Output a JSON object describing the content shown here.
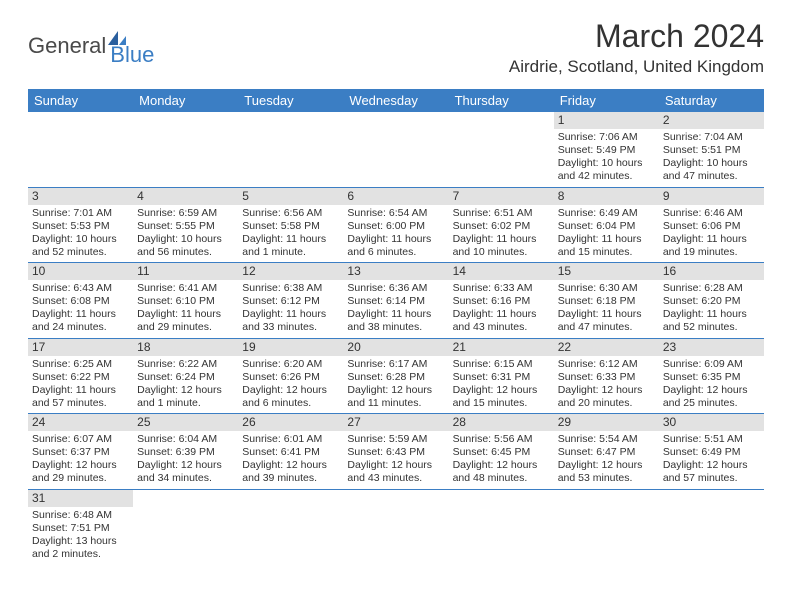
{
  "logo": {
    "part1": "General",
    "part2": "Blue"
  },
  "title": "March 2024",
  "location": "Airdrie, Scotland, United Kingdom",
  "day_headers": [
    "Sunday",
    "Monday",
    "Tuesday",
    "Wednesday",
    "Thursday",
    "Friday",
    "Saturday"
  ],
  "header_bg": "#3b7ec4",
  "daynum_bg": "#e2e2e2",
  "border_color": "#3b7ec4",
  "weeks": [
    [
      {
        "empty": true
      },
      {
        "empty": true
      },
      {
        "empty": true
      },
      {
        "empty": true
      },
      {
        "empty": true
      },
      {
        "day": "1",
        "sunrise": "Sunrise: 7:06 AM",
        "sunset": "Sunset: 5:49 PM",
        "daylight": "Daylight: 10 hours and 42 minutes."
      },
      {
        "day": "2",
        "sunrise": "Sunrise: 7:04 AM",
        "sunset": "Sunset: 5:51 PM",
        "daylight": "Daylight: 10 hours and 47 minutes."
      }
    ],
    [
      {
        "day": "3",
        "sunrise": "Sunrise: 7:01 AM",
        "sunset": "Sunset: 5:53 PM",
        "daylight": "Daylight: 10 hours and 52 minutes."
      },
      {
        "day": "4",
        "sunrise": "Sunrise: 6:59 AM",
        "sunset": "Sunset: 5:55 PM",
        "daylight": "Daylight: 10 hours and 56 minutes."
      },
      {
        "day": "5",
        "sunrise": "Sunrise: 6:56 AM",
        "sunset": "Sunset: 5:58 PM",
        "daylight": "Daylight: 11 hours and 1 minute."
      },
      {
        "day": "6",
        "sunrise": "Sunrise: 6:54 AM",
        "sunset": "Sunset: 6:00 PM",
        "daylight": "Daylight: 11 hours and 6 minutes."
      },
      {
        "day": "7",
        "sunrise": "Sunrise: 6:51 AM",
        "sunset": "Sunset: 6:02 PM",
        "daylight": "Daylight: 11 hours and 10 minutes."
      },
      {
        "day": "8",
        "sunrise": "Sunrise: 6:49 AM",
        "sunset": "Sunset: 6:04 PM",
        "daylight": "Daylight: 11 hours and 15 minutes."
      },
      {
        "day": "9",
        "sunrise": "Sunrise: 6:46 AM",
        "sunset": "Sunset: 6:06 PM",
        "daylight": "Daylight: 11 hours and 19 minutes."
      }
    ],
    [
      {
        "day": "10",
        "sunrise": "Sunrise: 6:43 AM",
        "sunset": "Sunset: 6:08 PM",
        "daylight": "Daylight: 11 hours and 24 minutes."
      },
      {
        "day": "11",
        "sunrise": "Sunrise: 6:41 AM",
        "sunset": "Sunset: 6:10 PM",
        "daylight": "Daylight: 11 hours and 29 minutes."
      },
      {
        "day": "12",
        "sunrise": "Sunrise: 6:38 AM",
        "sunset": "Sunset: 6:12 PM",
        "daylight": "Daylight: 11 hours and 33 minutes."
      },
      {
        "day": "13",
        "sunrise": "Sunrise: 6:36 AM",
        "sunset": "Sunset: 6:14 PM",
        "daylight": "Daylight: 11 hours and 38 minutes."
      },
      {
        "day": "14",
        "sunrise": "Sunrise: 6:33 AM",
        "sunset": "Sunset: 6:16 PM",
        "daylight": "Daylight: 11 hours and 43 minutes."
      },
      {
        "day": "15",
        "sunrise": "Sunrise: 6:30 AM",
        "sunset": "Sunset: 6:18 PM",
        "daylight": "Daylight: 11 hours and 47 minutes."
      },
      {
        "day": "16",
        "sunrise": "Sunrise: 6:28 AM",
        "sunset": "Sunset: 6:20 PM",
        "daylight": "Daylight: 11 hours and 52 minutes."
      }
    ],
    [
      {
        "day": "17",
        "sunrise": "Sunrise: 6:25 AM",
        "sunset": "Sunset: 6:22 PM",
        "daylight": "Daylight: 11 hours and 57 minutes."
      },
      {
        "day": "18",
        "sunrise": "Sunrise: 6:22 AM",
        "sunset": "Sunset: 6:24 PM",
        "daylight": "Daylight: 12 hours and 1 minute."
      },
      {
        "day": "19",
        "sunrise": "Sunrise: 6:20 AM",
        "sunset": "Sunset: 6:26 PM",
        "daylight": "Daylight: 12 hours and 6 minutes."
      },
      {
        "day": "20",
        "sunrise": "Sunrise: 6:17 AM",
        "sunset": "Sunset: 6:28 PM",
        "daylight": "Daylight: 12 hours and 11 minutes."
      },
      {
        "day": "21",
        "sunrise": "Sunrise: 6:15 AM",
        "sunset": "Sunset: 6:31 PM",
        "daylight": "Daylight: 12 hours and 15 minutes."
      },
      {
        "day": "22",
        "sunrise": "Sunrise: 6:12 AM",
        "sunset": "Sunset: 6:33 PM",
        "daylight": "Daylight: 12 hours and 20 minutes."
      },
      {
        "day": "23",
        "sunrise": "Sunrise: 6:09 AM",
        "sunset": "Sunset: 6:35 PM",
        "daylight": "Daylight: 12 hours and 25 minutes."
      }
    ],
    [
      {
        "day": "24",
        "sunrise": "Sunrise: 6:07 AM",
        "sunset": "Sunset: 6:37 PM",
        "daylight": "Daylight: 12 hours and 29 minutes."
      },
      {
        "day": "25",
        "sunrise": "Sunrise: 6:04 AM",
        "sunset": "Sunset: 6:39 PM",
        "daylight": "Daylight: 12 hours and 34 minutes."
      },
      {
        "day": "26",
        "sunrise": "Sunrise: 6:01 AM",
        "sunset": "Sunset: 6:41 PM",
        "daylight": "Daylight: 12 hours and 39 minutes."
      },
      {
        "day": "27",
        "sunrise": "Sunrise: 5:59 AM",
        "sunset": "Sunset: 6:43 PM",
        "daylight": "Daylight: 12 hours and 43 minutes."
      },
      {
        "day": "28",
        "sunrise": "Sunrise: 5:56 AM",
        "sunset": "Sunset: 6:45 PM",
        "daylight": "Daylight: 12 hours and 48 minutes."
      },
      {
        "day": "29",
        "sunrise": "Sunrise: 5:54 AM",
        "sunset": "Sunset: 6:47 PM",
        "daylight": "Daylight: 12 hours and 53 minutes."
      },
      {
        "day": "30",
        "sunrise": "Sunrise: 5:51 AM",
        "sunset": "Sunset: 6:49 PM",
        "daylight": "Daylight: 12 hours and 57 minutes."
      }
    ],
    [
      {
        "day": "31",
        "sunrise": "Sunrise: 6:48 AM",
        "sunset": "Sunset: 7:51 PM",
        "daylight": "Daylight: 13 hours and 2 minutes."
      },
      {
        "empty": true
      },
      {
        "empty": true
      },
      {
        "empty": true
      },
      {
        "empty": true
      },
      {
        "empty": true
      },
      {
        "empty": true
      }
    ]
  ]
}
